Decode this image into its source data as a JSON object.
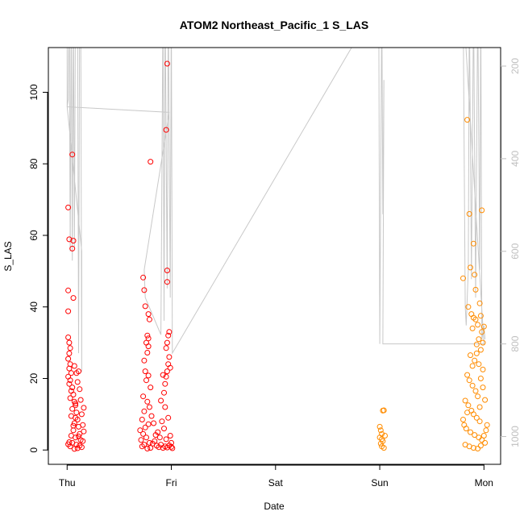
{
  "chart_data": {
    "type": "scatter",
    "title": "ATOM2 Northeast_Pacific_1 S_LAS",
    "xlabel": "Date",
    "ylabel": "S_LAS",
    "x_ticks": [
      "Thu",
      "Fri",
      "Sat",
      "Sun",
      "Mon"
    ],
    "x_tick_values": [
      0,
      1,
      2,
      3,
      4
    ],
    "xlim": [
      -0.18,
      4.16
    ],
    "ylim": [
      -4.0,
      112.5
    ],
    "y_ticks": [
      0,
      20,
      40,
      60,
      80,
      100
    ],
    "y2_label": "",
    "y2_ticks": [
      200,
      400,
      600,
      800,
      1000
    ],
    "y2lim": [
      1060,
      160
    ],
    "grid": false,
    "legend": "none",
    "colors": {
      "series_1": "#ff0000",
      "series_2": "#ff8c00",
      "altitude_trace": "#c8c8c8",
      "y2_tick_text": "#bfbfbf"
    },
    "series": [
      {
        "color": "#ff0000",
        "points": [
          [
            0.01,
            67.8
          ],
          [
            0.02,
            58.9
          ],
          [
            0.01,
            44.6
          ],
          [
            0.01,
            38.8
          ],
          [
            0.05,
            82.6
          ],
          [
            0.06,
            58.5
          ],
          [
            0.05,
            56.3
          ],
          [
            0.06,
            42.5
          ],
          [
            0.01,
            31.5
          ],
          [
            0.02,
            30.0
          ],
          [
            0.03,
            28.5
          ],
          [
            0.02,
            27.0
          ],
          [
            0.01,
            25.5
          ],
          [
            0.03,
            24.0
          ],
          [
            0.02,
            22.8
          ],
          [
            0.04,
            21.5
          ],
          [
            0.01,
            20.5
          ],
          [
            0.03,
            19.5
          ],
          [
            0.02,
            18.5
          ],
          [
            0.05,
            17.5
          ],
          [
            0.04,
            16.5
          ],
          [
            0.06,
            15.5
          ],
          [
            0.03,
            14.5
          ],
          [
            0.07,
            13.5
          ],
          [
            0.08,
            12.5
          ],
          [
            0.05,
            11.5
          ],
          [
            0.09,
            10.5
          ],
          [
            0.04,
            9.5
          ],
          [
            0.1,
            8.5
          ],
          [
            0.07,
            7.5
          ],
          [
            0.11,
            6.5
          ],
          [
            0.06,
            5.5
          ],
          [
            0.12,
            4.5
          ],
          [
            0.08,
            3.5
          ],
          [
            0.13,
            2.8
          ],
          [
            0.05,
            2.0
          ],
          [
            0.09,
            1.5
          ],
          [
            0.03,
            1.0
          ],
          [
            0.14,
            0.8
          ],
          [
            0.1,
            0.5
          ],
          [
            0.07,
            0.3
          ],
          [
            0.12,
            1.2
          ],
          [
            0.15,
            2.5
          ],
          [
            0.11,
            3.8
          ],
          [
            0.16,
            5.2
          ],
          [
            0.06,
            6.8
          ],
          [
            0.08,
            9.0
          ],
          [
            0.09,
            21.5
          ],
          [
            0.1,
            19.0
          ],
          [
            0.07,
            23.5
          ],
          [
            0.12,
            17.0
          ],
          [
            0.13,
            14.0
          ],
          [
            0.14,
            10.0
          ],
          [
            0.15,
            7.0
          ],
          [
            0.04,
            4.0
          ],
          [
            0.02,
            2.2
          ],
          [
            0.01,
            1.6
          ],
          [
            0.16,
            11.8
          ],
          [
            0.11,
            22.0
          ],
          [
            0.08,
            13.0
          ],
          [
            0.73,
            48.2
          ],
          [
            0.74,
            44.7
          ],
          [
            0.75,
            40.2
          ],
          [
            0.8,
            80.6
          ],
          [
            0.78,
            38.0
          ],
          [
            0.79,
            36.5
          ],
          [
            0.77,
            32.0
          ],
          [
            0.78,
            31.2
          ],
          [
            0.76,
            30.0
          ],
          [
            0.78,
            29.0
          ],
          [
            0.77,
            27.2
          ],
          [
            0.74,
            25.0
          ],
          [
            0.75,
            22.0
          ],
          [
            0.78,
            20.8
          ],
          [
            0.76,
            19.5
          ],
          [
            0.8,
            17.5
          ],
          [
            0.73,
            15.0
          ],
          [
            0.77,
            13.5
          ],
          [
            0.79,
            12.0
          ],
          [
            0.74,
            10.8
          ],
          [
            0.81,
            9.5
          ],
          [
            0.72,
            8.5
          ],
          [
            0.78,
            7.2
          ],
          [
            0.75,
            6.3
          ],
          [
            0.7,
            5.5
          ],
          [
            0.73,
            4.5
          ],
          [
            0.76,
            3.5
          ],
          [
            0.71,
            2.8
          ],
          [
            0.79,
            2.0
          ],
          [
            0.74,
            1.5
          ],
          [
            0.72,
            1.0
          ],
          [
            0.8,
            0.6
          ],
          [
            0.77,
            0.4
          ],
          [
            0.82,
            1.8
          ],
          [
            0.84,
            2.5
          ],
          [
            0.86,
            1.2
          ],
          [
            0.88,
            0.8
          ],
          [
            0.9,
            1.5
          ],
          [
            0.92,
            0.6
          ],
          [
            0.94,
            1.0
          ],
          [
            0.96,
            0.7
          ],
          [
            0.98,
            1.3
          ],
          [
            1.0,
            0.9
          ],
          [
            1.01,
            0.5
          ],
          [
            0.93,
            16.0
          ],
          [
            0.94,
            18.5
          ],
          [
            0.95,
            20.5
          ],
          [
            0.96,
            22.0
          ],
          [
            0.97,
            24.0
          ],
          [
            0.98,
            26.0
          ],
          [
            0.99,
            23.0
          ],
          [
            0.92,
            21.0
          ],
          [
            0.95,
            28.5
          ],
          [
            0.96,
            30.0
          ],
          [
            0.94,
            12.0
          ],
          [
            0.97,
            9.0
          ],
          [
            0.93,
            6.0
          ],
          [
            0.99,
            4.0
          ],
          [
            0.95,
            3.0
          ],
          [
            0.96,
            108.0
          ],
          [
            0.95,
            89.5
          ],
          [
            0.96,
            50.2
          ],
          [
            0.96,
            47.0
          ],
          [
            0.98,
            33.0
          ],
          [
            0.97,
            32.0
          ],
          [
            1.0,
            2.0
          ],
          [
            0.89,
            3.5
          ],
          [
            0.87,
            5.0
          ],
          [
            0.85,
            4.2
          ],
          [
            0.83,
            7.5
          ],
          [
            0.91,
            8.0
          ],
          [
            0.9,
            13.8
          ]
        ]
      },
      {
        "color": "#ff8c00",
        "points": [
          [
            3.0,
            6.5
          ],
          [
            3.01,
            5.5
          ],
          [
            3.02,
            4.5
          ],
          [
            3.0,
            3.5
          ],
          [
            3.03,
            2.5
          ],
          [
            3.01,
            1.8
          ],
          [
            3.02,
            1.0
          ],
          [
            3.04,
            0.6
          ],
          [
            3.03,
            11.0
          ],
          [
            3.04,
            11.1
          ],
          [
            3.05,
            4.0
          ],
          [
            3.02,
            3.0
          ],
          [
            3.8,
            48.0
          ],
          [
            3.84,
            92.3
          ],
          [
            3.86,
            66.0
          ],
          [
            3.87,
            51.0
          ],
          [
            3.9,
            57.7
          ],
          [
            3.91,
            49.0
          ],
          [
            3.92,
            44.8
          ],
          [
            3.85,
            40.0
          ],
          [
            3.88,
            38.0
          ],
          [
            3.9,
            37.0
          ],
          [
            3.92,
            36.5
          ],
          [
            3.89,
            34.0
          ],
          [
            3.94,
            35.0
          ],
          [
            3.96,
            41.0
          ],
          [
            3.97,
            37.5
          ],
          [
            3.98,
            33.0
          ],
          [
            4.0,
            34.5
          ],
          [
            3.95,
            31.0
          ],
          [
            3.98,
            67.0
          ],
          [
            3.99,
            30.0
          ],
          [
            3.93,
            29.5
          ],
          [
            3.97,
            28.0
          ],
          [
            3.87,
            26.5
          ],
          [
            3.91,
            25.0
          ],
          [
            3.95,
            24.0
          ],
          [
            3.99,
            22.5
          ],
          [
            3.84,
            21.0
          ],
          [
            3.86,
            19.5
          ],
          [
            3.89,
            18.0
          ],
          [
            3.92,
            16.5
          ],
          [
            3.94,
            15.0
          ],
          [
            3.82,
            13.8
          ],
          [
            3.85,
            12.5
          ],
          [
            3.88,
            11.0
          ],
          [
            3.9,
            10.0
          ],
          [
            3.93,
            9.0
          ],
          [
            3.96,
            8.0
          ],
          [
            3.81,
            7.0
          ],
          [
            3.83,
            6.0
          ],
          [
            3.87,
            5.0
          ],
          [
            3.91,
            4.2
          ],
          [
            3.95,
            3.5
          ],
          [
            3.98,
            2.8
          ],
          [
            4.01,
            2.0
          ],
          [
            3.82,
            1.5
          ],
          [
            3.86,
            1.0
          ],
          [
            3.9,
            0.6
          ],
          [
            3.94,
            0.4
          ],
          [
            3.97,
            1.2
          ],
          [
            4.0,
            4.0
          ],
          [
            4.02,
            5.5
          ],
          [
            4.03,
            7.0
          ],
          [
            3.8,
            8.5
          ],
          [
            3.84,
            10.5
          ],
          [
            3.89,
            23.5
          ],
          [
            3.93,
            27.0
          ],
          [
            3.97,
            20.0
          ],
          [
            4.01,
            14.0
          ],
          [
            3.99,
            17.5
          ],
          [
            3.96,
            12.0
          ]
        ]
      }
    ],
    "altitude_trace": [
      [
        0.0,
        60
      ],
      [
        0.0,
        288
      ],
      [
        0.01,
        272
      ],
      [
        0.02,
        60
      ],
      [
        0.03,
        600
      ],
      [
        0.04,
        60
      ],
      [
        0.05,
        620
      ],
      [
        0.06,
        60
      ],
      [
        0.07,
        590
      ],
      [
        0.08,
        60
      ],
      [
        0.1,
        60
      ],
      [
        0.11,
        820
      ],
      [
        0.12,
        60
      ],
      [
        0.13,
        60
      ],
      [
        0.14,
        860
      ],
      [
        0.14,
        600
      ],
      [
        0.0,
        288
      ],
      [
        0.98,
        300
      ],
      [
        0.74,
        640
      ],
      [
        0.75,
        700
      ],
      [
        0.9,
        780
      ],
      [
        0.92,
        60
      ],
      [
        0.93,
        750
      ],
      [
        0.94,
        60
      ],
      [
        0.96,
        680
      ],
      [
        0.97,
        60
      ],
      [
        0.99,
        700
      ],
      [
        1.0,
        60
      ],
      [
        1.01,
        820
      ],
      [
        2.99,
        60
      ],
      [
        3.0,
        800
      ],
      [
        3.02,
        60
      ],
      [
        3.03,
        520
      ],
      [
        3.04,
        230
      ],
      [
        3.03,
        800
      ],
      [
        4.0,
        800
      ],
      [
        3.8,
        60
      ],
      [
        3.82,
        720
      ],
      [
        3.83,
        760
      ],
      [
        3.85,
        640
      ],
      [
        3.86,
        60
      ],
      [
        3.88,
        660
      ],
      [
        3.9,
        60
      ],
      [
        3.92,
        700
      ],
      [
        3.94,
        60
      ],
      [
        3.96,
        640
      ],
      [
        3.97,
        60
      ],
      [
        3.98,
        790
      ],
      [
        4.0,
        760
      ],
      [
        4.01,
        790
      ]
    ]
  }
}
